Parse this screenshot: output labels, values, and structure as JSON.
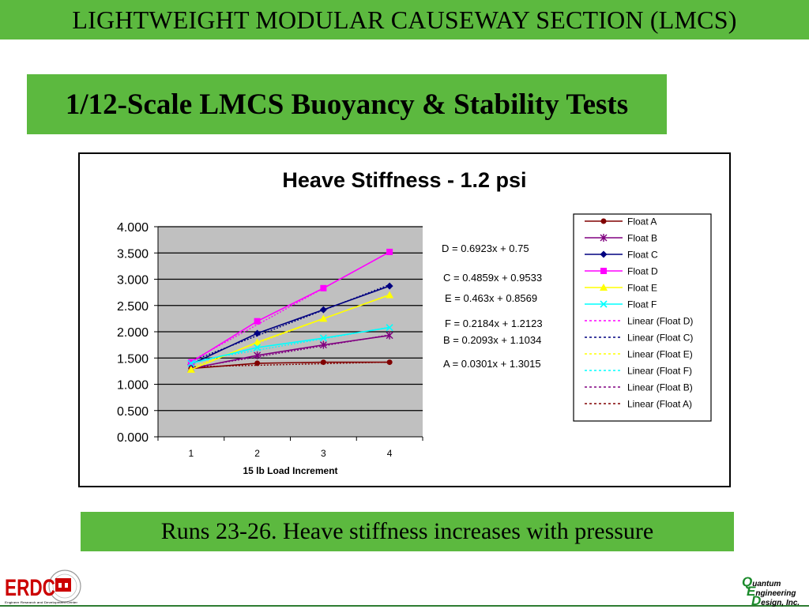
{
  "banner": {
    "title": "LIGHTWEIGHT MODULAR CAUSEWAY SECTION (LMCS)"
  },
  "subtitle": "1/12-Scale LMCS Buoyancy & Stability Tests",
  "caption": "Runs 23-26. Heave stiffness increases with pressure",
  "logos": {
    "erdc_text": "ERDC",
    "erdc_subtext": "Engineer Research and Development Center",
    "qed_lines": [
      {
        "initial": "Q",
        "rest": "uantum"
      },
      {
        "initial": "E",
        "rest": "ngineering"
      },
      {
        "initial": "D",
        "rest": "esign, Inc."
      }
    ]
  },
  "colors": {
    "green": "#5cb93f",
    "plot_bg": "#c0c0c0"
  },
  "chart_data": {
    "type": "line",
    "title": "Heave Stiffness - 1.2 psi",
    "xlabel": "15 lb Load Increment",
    "ylabel": "",
    "categories": [
      "1",
      "2",
      "3",
      "4"
    ],
    "ylim": [
      0,
      4
    ],
    "yticks": [
      "0.000",
      "0.500",
      "1.000",
      "1.500",
      "2.000",
      "2.500",
      "3.000",
      "3.500",
      "4.000"
    ],
    "grid": true,
    "legend_position": "right",
    "series": [
      {
        "name": "Float A",
        "color": "#800000",
        "marker": "circle",
        "values": [
          1.3,
          1.4,
          1.42,
          1.42
        ]
      },
      {
        "name": "Float B",
        "color": "#800080",
        "marker": "star",
        "values": [
          1.3,
          1.55,
          1.75,
          1.93
        ]
      },
      {
        "name": "Float C",
        "color": "#000080",
        "marker": "diamond",
        "values": [
          1.38,
          1.97,
          2.42,
          2.87
        ]
      },
      {
        "name": "Float D",
        "color": "#ff00ff",
        "marker": "square",
        "values": [
          1.42,
          2.2,
          2.83,
          3.52
        ]
      },
      {
        "name": "Float E",
        "color": "#ffff00",
        "marker": "triangle",
        "values": [
          1.28,
          1.8,
          2.25,
          2.7
        ]
      },
      {
        "name": "Float F",
        "color": "#00ffff",
        "marker": "x",
        "values": [
          1.4,
          1.7,
          1.88,
          2.08
        ]
      }
    ],
    "trendlines": [
      {
        "name": "Linear (Float D)",
        "color": "#ff00ff",
        "slope": 0.6923,
        "intercept": 0.75
      },
      {
        "name": "Linear (Float C)",
        "color": "#000080",
        "slope": 0.4859,
        "intercept": 0.9533
      },
      {
        "name": "Linear (Float E)",
        "color": "#ffff00",
        "slope": 0.463,
        "intercept": 0.8569
      },
      {
        "name": "Linear (Float F)",
        "color": "#00ffff",
        "slope": 0.2184,
        "intercept": 1.2123
      },
      {
        "name": "Linear (Float B)",
        "color": "#800080",
        "slope": 0.2093,
        "intercept": 1.1034
      },
      {
        "name": "Linear (Float A)",
        "color": "#800000",
        "slope": 0.0301,
        "intercept": 1.3015
      }
    ],
    "equations": [
      "D = 0.6923x + 0.75",
      "C = 0.4859x + 0.9533",
      "E = 0.463x + 0.8569",
      "F = 0.2184x + 1.2123",
      "B = 0.2093x + 1.1034",
      "A = 0.0301x + 1.3015"
    ]
  }
}
